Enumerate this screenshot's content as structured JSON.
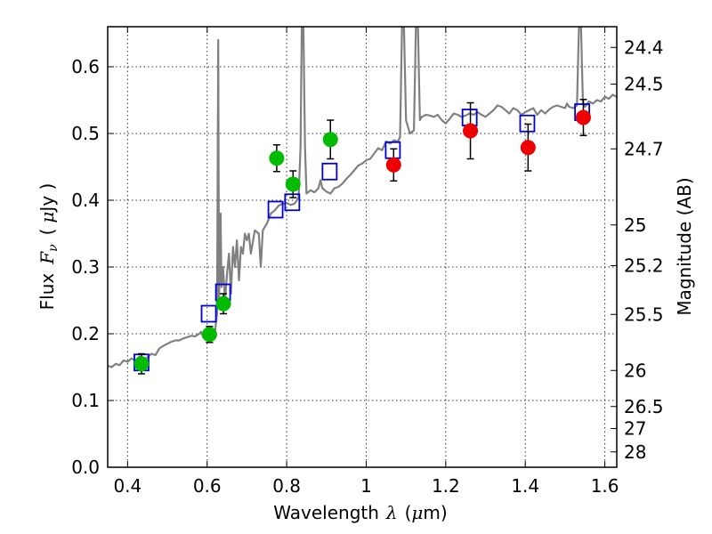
{
  "chart_data": {
    "type": "scatter",
    "title": "",
    "xlabel_prefix": "Wavelength",
    "xlabel_symbol": "λ",
    "xlabel_unit_open": "(",
    "xlabel_unit_mu": "μ",
    "xlabel_unit_rest": "m)",
    "ylabel_prefix": "Flux",
    "ylabel_symbol_F": "F",
    "ylabel_symbol_nu": "ν",
    "ylabel_unit_open": "(",
    "ylabel_unit_mu": "μ",
    "ylabel_unit_rest": "Jy )",
    "y2label": "Magnitude (AB)",
    "xlim": [
      0.35,
      1.63
    ],
    "ylim": [
      0.0,
      0.66
    ],
    "grid": true,
    "x_ticks": [
      0.4,
      0.6,
      0.8,
      1.0,
      1.2,
      1.4,
      1.6
    ],
    "x_tick_labels": [
      "0.4",
      "0.6",
      "0.8",
      "1",
      "1.2",
      "1.4",
      "1.6"
    ],
    "y_ticks": [
      0.0,
      0.1,
      0.2,
      0.3,
      0.4,
      0.5,
      0.6
    ],
    "y_tick_labels": [
      "0.0",
      "0.1",
      "0.2",
      "0.3",
      "0.4",
      "0.5",
      "0.6"
    ],
    "y2_ticks": [
      {
        "label": "24.4",
        "flux": 0.629
      },
      {
        "label": "24.5",
        "flux": 0.574
      },
      {
        "label": "24.7",
        "flux": 0.477
      },
      {
        "label": "25",
        "flux": 0.363
      },
      {
        "label": "25.2",
        "flux": 0.302
      },
      {
        "label": "25.5",
        "flux": 0.229
      },
      {
        "label": "26",
        "flux": 0.145
      },
      {
        "label": "26.5",
        "flux": 0.091
      },
      {
        "label": "27",
        "flux": 0.058
      },
      {
        "label": "28",
        "flux": 0.023
      }
    ],
    "model_spectrum": {
      "name": "model",
      "color": "#808080",
      "points": [
        [
          0.35,
          0.152
        ],
        [
          0.36,
          0.15
        ],
        [
          0.37,
          0.155
        ],
        [
          0.38,
          0.153
        ],
        [
          0.39,
          0.16
        ],
        [
          0.4,
          0.158
        ],
        [
          0.41,
          0.163
        ],
        [
          0.42,
          0.16
        ],
        [
          0.43,
          0.166
        ],
        [
          0.44,
          0.158
        ],
        [
          0.45,
          0.165
        ],
        [
          0.46,
          0.17
        ],
        [
          0.47,
          0.168
        ],
        [
          0.48,
          0.178
        ],
        [
          0.49,
          0.182
        ],
        [
          0.5,
          0.185
        ],
        [
          0.51,
          0.188
        ],
        [
          0.52,
          0.19
        ],
        [
          0.53,
          0.19
        ],
        [
          0.54,
          0.193
        ],
        [
          0.55,
          0.195
        ],
        [
          0.56,
          0.197
        ],
        [
          0.57,
          0.196
        ],
        [
          0.58,
          0.2
        ],
        [
          0.585,
          0.203
        ],
        [
          0.59,
          0.195
        ],
        [
          0.6,
          0.198
        ],
        [
          0.61,
          0.197
        ],
        [
          0.62,
          0.205
        ],
        [
          0.625,
          0.23
        ],
        [
          0.628,
          0.64
        ],
        [
          0.63,
          0.25
        ],
        [
          0.634,
          0.38
        ],
        [
          0.636,
          0.27
        ],
        [
          0.64,
          0.3
        ],
        [
          0.645,
          0.25
        ],
        [
          0.65,
          0.29
        ],
        [
          0.655,
          0.32
        ],
        [
          0.66,
          0.26
        ],
        [
          0.665,
          0.33
        ],
        [
          0.67,
          0.3
        ],
        [
          0.675,
          0.34
        ],
        [
          0.68,
          0.28
        ],
        [
          0.685,
          0.33
        ],
        [
          0.69,
          0.32
        ],
        [
          0.695,
          0.35
        ],
        [
          0.7,
          0.34
        ],
        [
          0.705,
          0.35
        ],
        [
          0.71,
          0.32
        ],
        [
          0.72,
          0.355
        ],
        [
          0.73,
          0.35
        ],
        [
          0.735,
          0.3
        ],
        [
          0.74,
          0.355
        ],
        [
          0.75,
          0.365
        ],
        [
          0.76,
          0.38
        ],
        [
          0.77,
          0.385
        ],
        [
          0.78,
          0.392
        ],
        [
          0.79,
          0.395
        ],
        [
          0.8,
          0.396
        ],
        [
          0.81,
          0.393
        ],
        [
          0.82,
          0.395
        ],
        [
          0.83,
          0.404
        ],
        [
          0.835,
          0.48
        ],
        [
          0.838,
          0.66
        ],
        [
          0.842,
          0.66
        ],
        [
          0.846,
          0.48
        ],
        [
          0.85,
          0.41
        ],
        [
          0.86,
          0.415
        ],
        [
          0.87,
          0.412
        ],
        [
          0.88,
          0.418
        ],
        [
          0.885,
          0.43
        ],
        [
          0.89,
          0.418
        ],
        [
          0.9,
          0.413
        ],
        [
          0.91,
          0.41
        ],
        [
          0.92,
          0.418
        ],
        [
          0.93,
          0.42
        ],
        [
          0.94,
          0.425
        ],
        [
          0.95,
          0.432
        ],
        [
          0.96,
          0.438
        ],
        [
          0.97,
          0.445
        ],
        [
          0.98,
          0.452
        ],
        [
          0.99,
          0.455
        ],
        [
          1.0,
          0.46
        ],
        [
          1.01,
          0.462
        ],
        [
          1.02,
          0.47
        ],
        [
          1.03,
          0.478
        ],
        [
          1.04,
          0.475
        ],
        [
          1.05,
          0.488
        ],
        [
          1.06,
          0.485
        ],
        [
          1.07,
          0.49
        ],
        [
          1.08,
          0.488
        ],
        [
          1.085,
          0.495
        ],
        [
          1.09,
          0.66
        ],
        [
          1.095,
          0.66
        ],
        [
          1.1,
          0.52
        ],
        [
          1.11,
          0.5
        ],
        [
          1.12,
          0.505
        ],
        [
          1.125,
          0.66
        ],
        [
          1.13,
          0.66
        ],
        [
          1.135,
          0.52
        ],
        [
          1.14,
          0.525
        ],
        [
          1.15,
          0.528
        ],
        [
          1.16,
          0.527
        ],
        [
          1.17,
          0.525
        ],
        [
          1.18,
          0.528
        ],
        [
          1.19,
          0.52
        ],
        [
          1.2,
          0.515
        ],
        [
          1.21,
          0.522
        ],
        [
          1.22,
          0.53
        ],
        [
          1.23,
          0.528
        ],
        [
          1.24,
          0.525
        ],
        [
          1.25,
          0.527
        ],
        [
          1.26,
          0.53
        ],
        [
          1.27,
          0.528
        ],
        [
          1.28,
          0.532
        ],
        [
          1.29,
          0.528
        ],
        [
          1.3,
          0.525
        ],
        [
          1.31,
          0.53
        ],
        [
          1.32,
          0.535
        ],
        [
          1.33,
          0.542
        ],
        [
          1.34,
          0.54
        ],
        [
          1.35,
          0.535
        ],
        [
          1.36,
          0.53
        ],
        [
          1.37,
          0.538
        ],
        [
          1.38,
          0.535
        ],
        [
          1.39,
          0.528
        ],
        [
          1.4,
          0.532
        ],
        [
          1.41,
          0.535
        ],
        [
          1.42,
          0.538
        ],
        [
          1.43,
          0.528
        ],
        [
          1.44,
          0.535
        ],
        [
          1.45,
          0.53
        ],
        [
          1.46,
          0.536
        ],
        [
          1.47,
          0.54
        ],
        [
          1.48,
          0.542
        ],
        [
          1.49,
          0.54
        ],
        [
          1.5,
          0.538
        ],
        [
          1.505,
          0.545
        ],
        [
          1.51,
          0.54
        ],
        [
          1.52,
          0.538
        ],
        [
          1.53,
          0.542
        ],
        [
          1.535,
          0.66
        ],
        [
          1.54,
          0.66
        ],
        [
          1.545,
          0.545
        ],
        [
          1.55,
          0.54
        ],
        [
          1.56,
          0.548
        ],
        [
          1.57,
          0.545
        ],
        [
          1.58,
          0.55
        ],
        [
          1.59,
          0.548
        ],
        [
          1.6,
          0.555
        ],
        [
          1.61,
          0.552
        ],
        [
          1.62,
          0.558
        ],
        [
          1.63,
          0.555
        ]
      ]
    },
    "series": [
      {
        "name": "model-band-flux",
        "marker": "open-square",
        "color": "#0000dd",
        "points": [
          {
            "x": 0.435,
            "y": 0.157
          },
          {
            "x": 0.604,
            "y": 0.23
          },
          {
            "x": 0.64,
            "y": 0.262
          },
          {
            "x": 0.772,
            "y": 0.386
          },
          {
            "x": 0.814,
            "y": 0.397
          },
          {
            "x": 0.908,
            "y": 0.443
          },
          {
            "x": 1.067,
            "y": 0.475
          },
          {
            "x": 1.26,
            "y": 0.524
          },
          {
            "x": 1.405,
            "y": 0.515
          },
          {
            "x": 1.543,
            "y": 0.532
          }
        ]
      },
      {
        "name": "optical-observed",
        "marker": "filled-circle",
        "color": "#00bb00",
        "points": [
          {
            "x": 0.435,
            "y": 0.155,
            "err": 0.015
          },
          {
            "x": 0.606,
            "y": 0.199,
            "err": 0.012
          },
          {
            "x": 0.641,
            "y": 0.245,
            "err": 0.015
          },
          {
            "x": 0.775,
            "y": 0.463,
            "err": 0.02
          },
          {
            "x": 0.816,
            "y": 0.424,
            "err": 0.02
          },
          {
            "x": 0.91,
            "y": 0.491,
            "err": 0.029
          }
        ]
      },
      {
        "name": "nir-observed",
        "marker": "filled-circle",
        "color": "#ee0000",
        "points": [
          {
            "x": 1.069,
            "y": 0.453,
            "err": 0.024
          },
          {
            "x": 1.262,
            "y": 0.504,
            "err": 0.042
          },
          {
            "x": 1.407,
            "y": 0.479,
            "err": 0.035
          },
          {
            "x": 1.546,
            "y": 0.524,
            "err": 0.027
          }
        ]
      }
    ]
  }
}
